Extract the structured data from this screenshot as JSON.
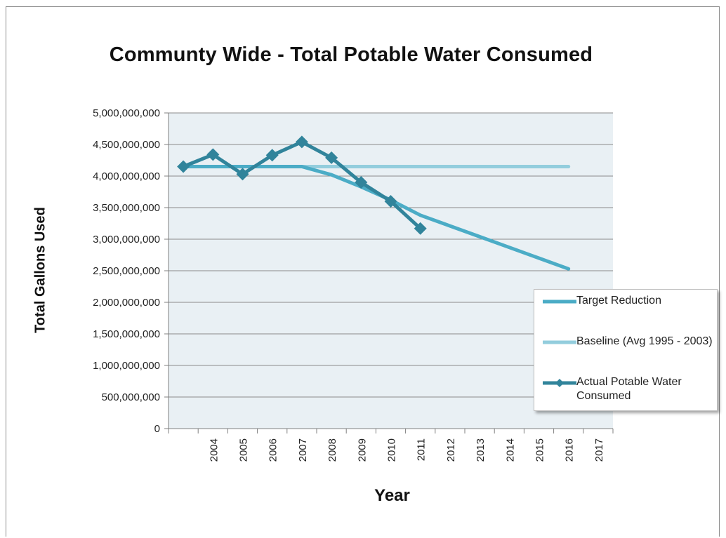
{
  "chart_data": {
    "type": "line",
    "title": "Communty Wide - Total Potable Water Consumed",
    "xlabel": "Year",
    "ylabel": "Total Gallons Used",
    "ylim": [
      0,
      5000000000
    ],
    "yticks": [
      0,
      500000000,
      1000000000,
      1500000000,
      2000000000,
      2500000000,
      3000000000,
      3500000000,
      4000000000,
      4500000000,
      5000000000
    ],
    "ytick_labels": [
      "0",
      "500,000,000",
      "1,000,000,000",
      "1,500,000,000",
      "2,000,000,000",
      "2,500,000,000",
      "3,000,000,000",
      "3,500,000,000",
      "4,000,000,000",
      "4,500,000,000",
      "5,000,000,000"
    ],
    "categories": [
      "",
      "2004",
      "2005",
      "2006",
      "2007",
      "2008",
      "2009",
      "2010",
      "2011",
      "2012",
      "2013",
      "2014",
      "2015",
      "2016",
      "2017"
    ],
    "grid": "horizontal major lines",
    "legend_position": "right",
    "series": [
      {
        "name": "Target Reduction",
        "color": "#4bacc6",
        "values": [
          4150000000,
          4150000000,
          4150000000,
          4150000000,
          4150000000,
          4020000000,
          3830000000,
          3620000000,
          3380000000,
          3210000000,
          3040000000,
          2870000000,
          2700000000,
          2530000000,
          null
        ]
      },
      {
        "name": "Baseline (Avg 1995 - 2003)",
        "color": "#93cddd",
        "values": [
          4150000000,
          4150000000,
          4150000000,
          4150000000,
          4150000000,
          4150000000,
          4150000000,
          4150000000,
          4150000000,
          4150000000,
          4150000000,
          4150000000,
          4150000000,
          4150000000,
          null
        ]
      },
      {
        "name": "Actual Potable Water Consumed",
        "color": "#31849b",
        "marker": "diamond",
        "values": [
          4150000000,
          4340000000,
          4030000000,
          4330000000,
          4540000000,
          4290000000,
          3900000000,
          3600000000,
          3170000000,
          null,
          null,
          null,
          null,
          null,
          null
        ]
      }
    ]
  }
}
